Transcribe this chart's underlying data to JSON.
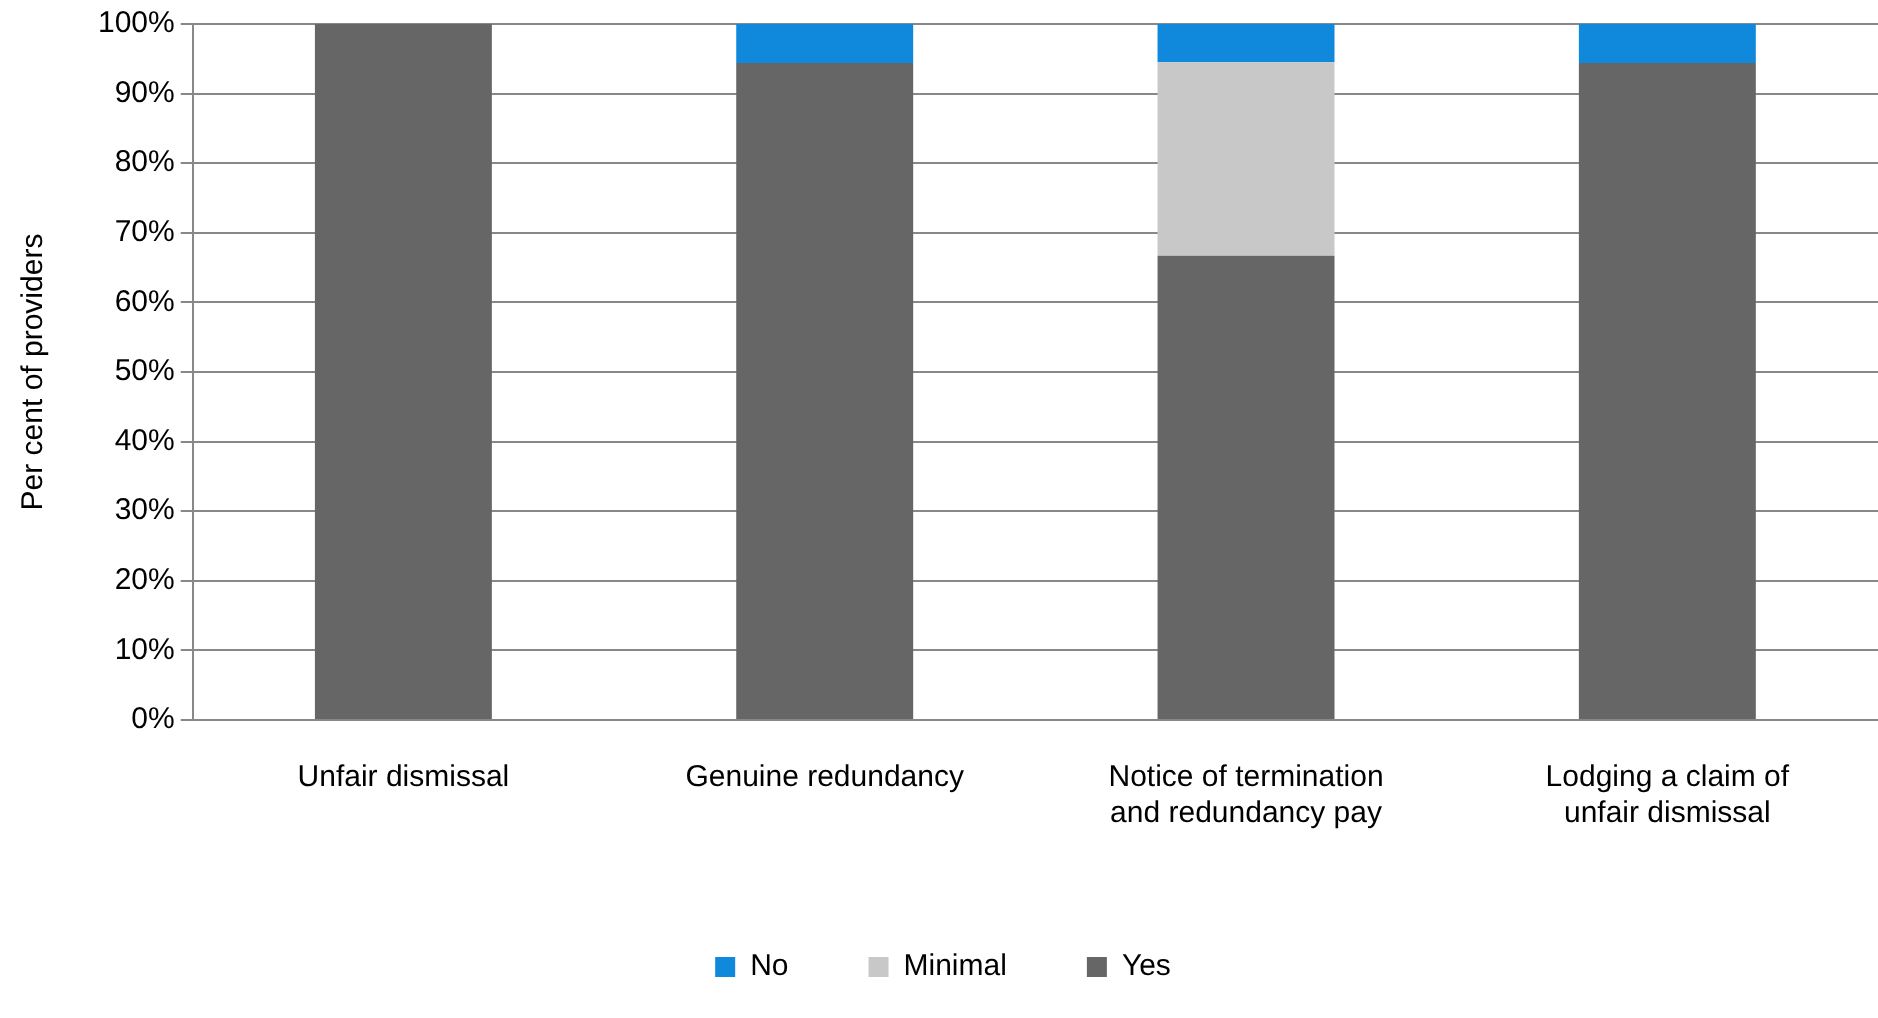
{
  "chart_data": {
    "type": "bar",
    "stacked": true,
    "ylabel": "Per cent of providers",
    "categories": [
      "Unfair dismissal",
      "Genuine redundancy",
      "Notice of termination and redundancy pay",
      "Lodging a claim of unfair dismissal"
    ],
    "series": [
      {
        "name": "Yes",
        "color": "#666666",
        "values": [
          100,
          94.4,
          66.7,
          94.4
        ]
      },
      {
        "name": "Minimal",
        "color": "#c8c8c8",
        "values": [
          0,
          0,
          27.8,
          0
        ]
      },
      {
        "name": "No",
        "color": "#1088dc",
        "values": [
          0,
          5.6,
          5.6,
          5.6
        ]
      }
    ],
    "ylim": [
      0,
      100
    ],
    "yticks": [
      {
        "value": 0,
        "label": "0%"
      },
      {
        "value": 10,
        "label": "10%"
      },
      {
        "value": 20,
        "label": "20%"
      },
      {
        "value": 30,
        "label": "30%"
      },
      {
        "value": 40,
        "label": "40%"
      },
      {
        "value": 50,
        "label": "50%"
      },
      {
        "value": 60,
        "label": "60%"
      },
      {
        "value": 70,
        "label": "70%"
      },
      {
        "value": 80,
        "label": "80%"
      },
      {
        "value": 90,
        "label": "90%"
      },
      {
        "value": 100,
        "label": "100%"
      }
    ],
    "grid": "y",
    "legend": "bottom"
  }
}
